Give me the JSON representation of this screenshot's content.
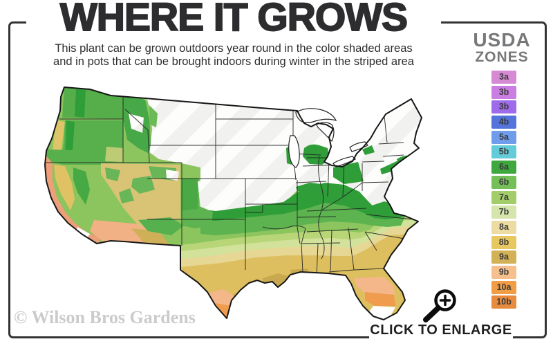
{
  "header": {
    "title": "WHERE IT GROWS",
    "subtitle_line1": "This plant can be grown outdoors year round in the color shaded areas",
    "subtitle_line2": "and in pots that can be brought indoors during winter in the striped area"
  },
  "legend": {
    "title_line1": "USDA",
    "title_line2": "ZONES",
    "zones": [
      {
        "label": "3a",
        "color": "#d78ad4"
      },
      {
        "label": "3b",
        "color": "#cb7ee1"
      },
      {
        "label": "3b",
        "color": "#9e6cea"
      },
      {
        "label": "4b",
        "color": "#5474dc"
      },
      {
        "label": "5a",
        "color": "#6f9ceb"
      },
      {
        "label": "5b",
        "color": "#64ccd9"
      },
      {
        "label": "6a",
        "color": "#3ea73e"
      },
      {
        "label": "6b",
        "color": "#74bf58"
      },
      {
        "label": "7a",
        "color": "#a3cd68"
      },
      {
        "label": "7b",
        "color": "#d5e5ab"
      },
      {
        "label": "8a",
        "color": "#ecdca2"
      },
      {
        "label": "8b",
        "color": "#e7c75f"
      },
      {
        "label": "9a",
        "color": "#d3b156"
      },
      {
        "label": "9b",
        "color": "#f5c08d"
      },
      {
        "label": "10a",
        "color": "#f19d45"
      },
      {
        "label": "10b",
        "color": "#e78b3e"
      }
    ]
  },
  "footer": {
    "watermark": "© Wilson Bros Gardens",
    "enlarge_label": "CLICK TO ENLARGE"
  }
}
